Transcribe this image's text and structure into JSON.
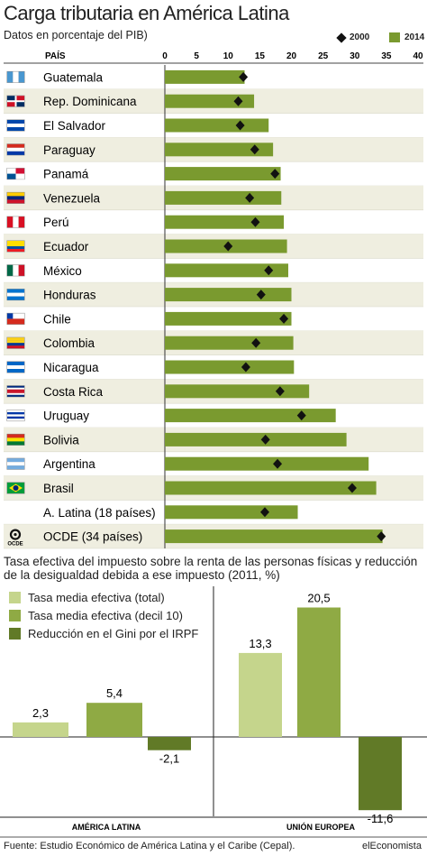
{
  "title": "Carga tributaria en América Latina",
  "subtitle": "Datos en porcentaje del PIB)",
  "colors": {
    "bar2014": "#7a9a2f",
    "marker2000": "#111111",
    "rowShade": "#efeee0",
    "light": "#c5d58c",
    "medium": "#8faa44",
    "dark": "#617a27"
  },
  "chart_data": [
    {
      "type": "bar",
      "orientation": "horizontal",
      "column_header": "PAÍS",
      "xlim": [
        0,
        40
      ],
      "xticks": [
        0,
        5,
        10,
        15,
        20,
        25,
        30,
        35,
        40
      ],
      "legend": [
        "2000",
        "2014"
      ],
      "legend_position": "top-right",
      "categories": [
        "Guatemala",
        "Rep. Dominicana",
        "El Salvador",
        "Paraguay",
        "Panamá",
        "Venezuela",
        "Perú",
        "Ecuador",
        "México",
        "Honduras",
        "Chile",
        "Colombia",
        "Nicaragua",
        "Costa Rica",
        "Uruguay",
        "Bolivia",
        "Argentina",
        "Brasil",
        "A. Latina (18 países)",
        "OCDE (34 países)"
      ],
      "flag_icons": [
        "guatemala-flag-icon",
        "dominican-republic-flag-icon",
        "el-salvador-flag-icon",
        "paraguay-flag-icon",
        "panama-flag-icon",
        "venezuela-flag-icon",
        "peru-flag-icon",
        "ecuador-flag-icon",
        "mexico-flag-icon",
        "honduras-flag-icon",
        "chile-flag-icon",
        "colombia-flag-icon",
        "nicaragua-flag-icon",
        "costa-rica-flag-icon",
        "uruguay-flag-icon",
        "bolivia-flag-icon",
        "argentina-flag-icon",
        "brazil-flag-icon",
        "",
        "ocde-logo-icon"
      ],
      "series": [
        {
          "name": "2014",
          "mark": "bar",
          "values": [
            12.6,
            14.1,
            16.4,
            17.1,
            18.3,
            18.4,
            18.8,
            19.3,
            19.5,
            20.0,
            20.0,
            20.3,
            20.4,
            22.8,
            27.0,
            28.7,
            32.2,
            33.4,
            21.0,
            34.4
          ]
        },
        {
          "name": "2000",
          "mark": "diamond",
          "values": [
            12.4,
            11.6,
            11.9,
            14.2,
            17.4,
            13.4,
            14.3,
            10.0,
            16.4,
            15.2,
            18.8,
            14.4,
            12.8,
            18.2,
            21.6,
            15.9,
            17.8,
            29.6,
            15.8,
            34.2
          ]
        }
      ]
    },
    {
      "type": "bar",
      "title": "Tasa efectiva del impuesto sobre la renta de las personas físicas y reducción de la desigualdad debida a ese impuesto (2011, %)",
      "categories": [
        "AMÉRICA LATINA",
        "UNIÓN EUROPEA"
      ],
      "series": [
        {
          "name": "Tasa media efectiva (total)",
          "values": [
            2.3,
            13.3
          ],
          "labels": [
            "2,3",
            "13,3"
          ]
        },
        {
          "name": "Tasa media efectiva (decil 10)",
          "values": [
            5.4,
            20.5
          ],
          "labels": [
            "5,4",
            "20,5"
          ]
        },
        {
          "name": "Reducción en el Gini por el IRPF",
          "values": [
            -2.1,
            -11.6
          ],
          "labels": [
            "-2,1",
            "-11,6"
          ]
        }
      ],
      "ylim": [
        -13.5,
        25
      ]
    }
  ],
  "footer": "Fuente: Estudio Económico de América Latina y el Caribe (Cepal).",
  "credit": "elEconomista"
}
